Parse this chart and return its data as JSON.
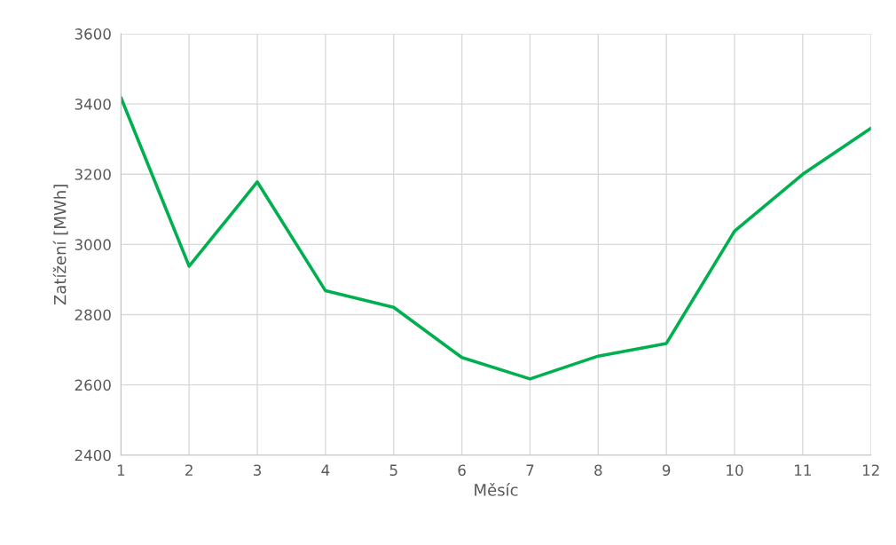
{
  "chart_data": {
    "type": "line",
    "xlabel": "Měsíc",
    "ylabel": "Zatížení [MWh]",
    "x": [
      1,
      2,
      3,
      4,
      5,
      6,
      7,
      8,
      9,
      10,
      11,
      12
    ],
    "series": [
      {
        "color": "#00b050",
        "values": [
          3418,
          2938,
          3178,
          2868,
          2821,
          2678,
          2617,
          2682,
          2718,
          3038,
          3200,
          3331
        ]
      }
    ],
    "xlim": [
      1,
      12
    ],
    "xticks": [
      1,
      2,
      3,
      4,
      5,
      6,
      7,
      8,
      9,
      10,
      11,
      12
    ],
    "ylim": [
      2400,
      3600
    ],
    "yticks": [
      2400,
      2600,
      2800,
      3000,
      3200,
      3400,
      3600
    ],
    "grid": true,
    "legend": false
  }
}
